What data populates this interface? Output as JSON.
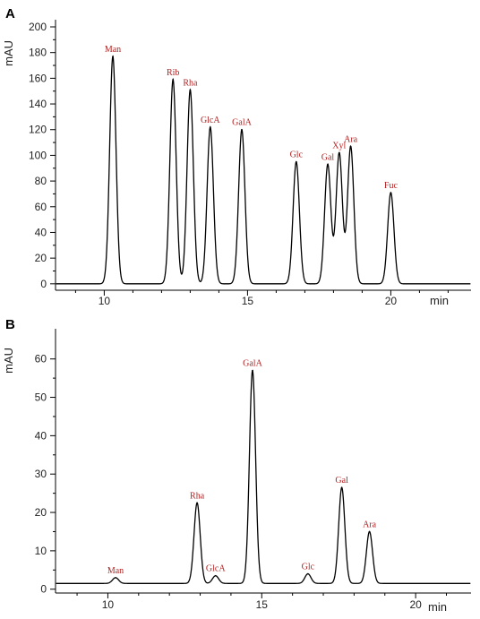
{
  "figure": {
    "panels": [
      "A",
      "B"
    ]
  },
  "chart_data": [
    {
      "type": "line",
      "panel": "A",
      "title": "",
      "xlabel": "min",
      "ylabel": "mAU",
      "xlim": [
        8.3,
        22.8
      ],
      "ylim": [
        -5,
        200
      ],
      "xticks": [
        10,
        15,
        20
      ],
      "yticks": [
        0,
        20,
        40,
        60,
        80,
        100,
        120,
        140,
        160,
        180,
        200
      ],
      "baseline": 0,
      "peaks": [
        {
          "label": "Man",
          "x": 10.3,
          "y": 177
        },
        {
          "label": "Rib",
          "x": 12.4,
          "y": 159
        },
        {
          "label": "Rha",
          "x": 13.0,
          "y": 151
        },
        {
          "label": "GlcA",
          "x": 13.7,
          "y": 122
        },
        {
          "label": "GalA",
          "x": 14.8,
          "y": 120
        },
        {
          "label": "Glc",
          "x": 16.7,
          "y": 95
        },
        {
          "label": "Gal",
          "x": 17.8,
          "y": 93
        },
        {
          "label": "Xyl",
          "x": 18.2,
          "y": 102
        },
        {
          "label": "Ara",
          "x": 18.6,
          "y": 107
        },
        {
          "label": "Fuc",
          "x": 20.0,
          "y": 71
        }
      ]
    },
    {
      "type": "line",
      "panel": "B",
      "title": "",
      "xlabel": "min",
      "ylabel": "mAU",
      "xlim": [
        8.3,
        21.8
      ],
      "ylim": [
        -1,
        66
      ],
      "xticks": [
        10,
        15,
        20
      ],
      "yticks": [
        0,
        10,
        20,
        30,
        40,
        50,
        60
      ],
      "baseline": 1.5,
      "peaks": [
        {
          "label": "Man",
          "x": 10.25,
          "y": 3
        },
        {
          "label": "Rha",
          "x": 12.9,
          "y": 22.5
        },
        {
          "label": "GlcA",
          "x": 13.5,
          "y": 3.5
        },
        {
          "label": "GalA",
          "x": 14.7,
          "y": 57
        },
        {
          "label": "Glc",
          "x": 16.5,
          "y": 4
        },
        {
          "label": "Gal",
          "x": 17.6,
          "y": 26.5
        },
        {
          "label": "Ara",
          "x": 18.5,
          "y": 15
        }
      ]
    }
  ]
}
